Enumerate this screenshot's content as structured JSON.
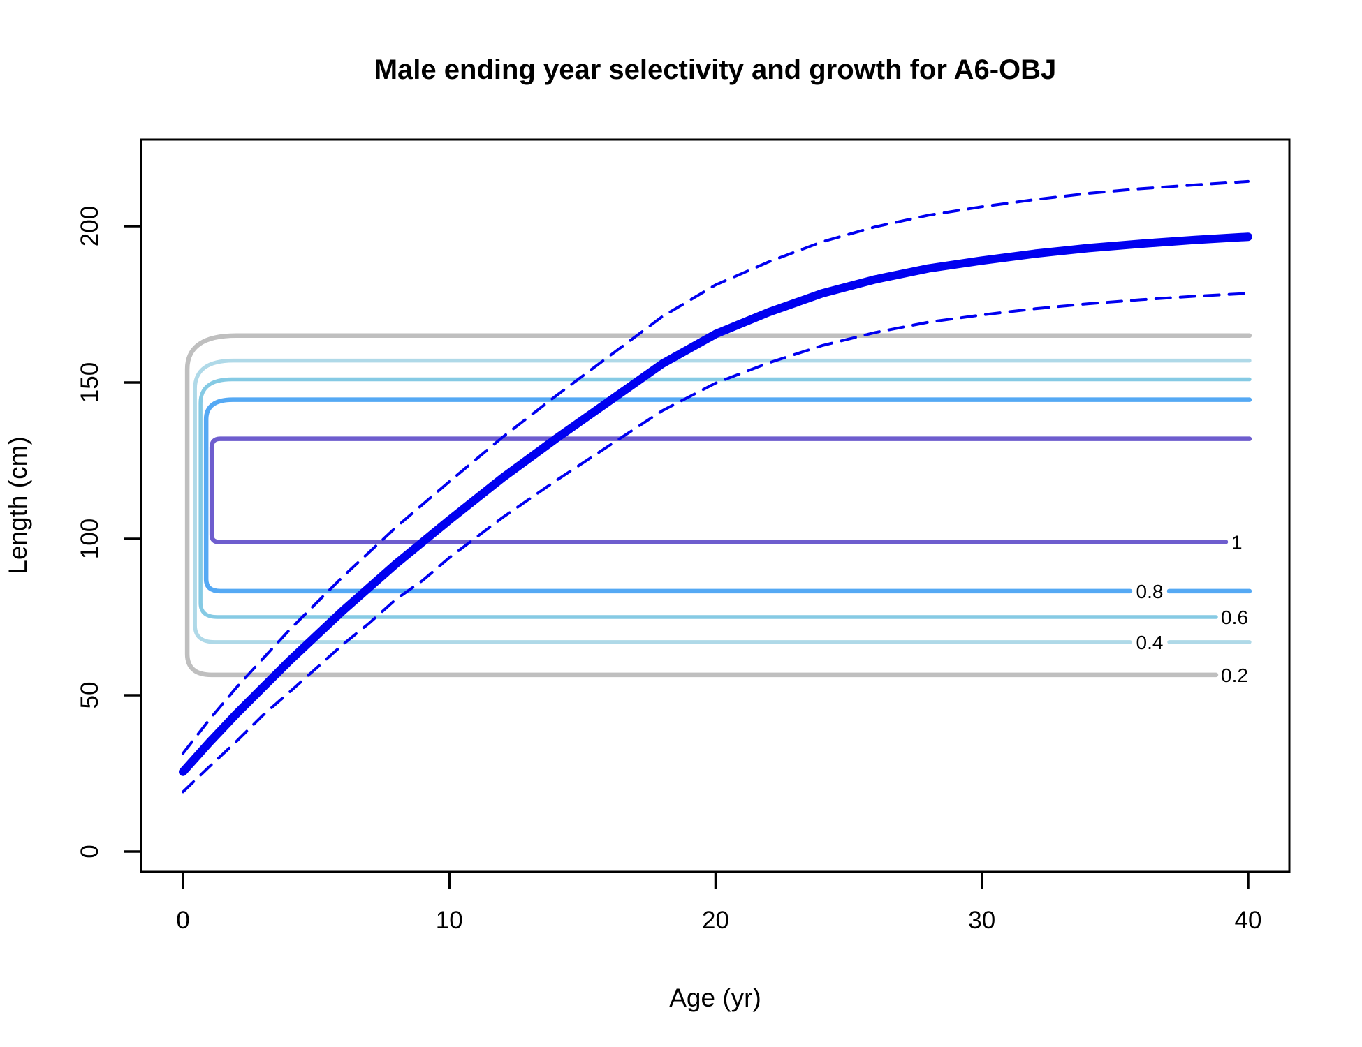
{
  "title": "Male ending year selectivity and growth for A6-OBJ",
  "x_axis": {
    "label": "Age (yr)",
    "ticks": [
      "0",
      "10",
      "20",
      "30",
      "40"
    ]
  },
  "y_axis": {
    "label": "Length (cm)",
    "ticks": [
      "0",
      "50",
      "100",
      "150",
      "200"
    ]
  },
  "colors": {
    "growth_mean": "#0000F0",
    "growth_interval": "#0000F0",
    "sel_02": "#BFBFBF",
    "sel_04": "#AFD9E8",
    "sel_06": "#85CAE4",
    "sel_08": "#55A9F4",
    "sel_10": "#6E5DCE",
    "axis": "#000000",
    "background": "#FFFFFF"
  },
  "chart_data": {
    "type": "line",
    "title": "Male ending year selectivity and growth for A6-OBJ",
    "xlabel": "Age (yr)",
    "ylabel": "Length (cm)",
    "xlim": [
      -1.6,
      42.4
    ],
    "ylim": [
      -7,
      235
    ],
    "x_ticks": [
      0,
      10,
      20,
      30,
      40
    ],
    "y_ticks": [
      0,
      50,
      100,
      150,
      200
    ],
    "grid": false,
    "legend_position": "none",
    "series": [
      {
        "name": "mean length at age",
        "style": "solid",
        "color": "#0000F0",
        "width": 12,
        "x": [
          0,
          1,
          2,
          3,
          4,
          5,
          6,
          7,
          8,
          9,
          10,
          12,
          14,
          16,
          18,
          20,
          22,
          24,
          26,
          28,
          30,
          32,
          34,
          36,
          38,
          40
        ],
        "y": [
          25.5,
          35.0,
          44.0,
          52.5,
          61.0,
          69.0,
          77.0,
          84.5,
          92.0,
          99.0,
          106.0,
          119.5,
          132.0,
          144.0,
          156.0,
          165.5,
          172.5,
          178.5,
          183.0,
          186.5,
          189.0,
          191.2,
          193.0,
          194.4,
          195.6,
          196.6
        ]
      },
      {
        "name": "upper interval of length at age",
        "style": "dashed",
        "color": "#0000F0",
        "width": 4,
        "x": [
          0,
          1,
          2,
          3,
          4,
          5,
          6,
          7,
          8,
          9,
          10,
          12,
          14,
          16,
          18,
          20,
          22,
          24,
          26,
          28,
          30,
          32,
          34,
          36,
          38,
          40
        ],
        "y": [
          31.4,
          42.3,
          52.4,
          61.7,
          70.9,
          79.4,
          87.9,
          95.8,
          103.7,
          111.0,
          118.3,
          132.5,
          145.7,
          158.4,
          171.1,
          181.2,
          188.6,
          195.0,
          199.8,
          203.5,
          206.2,
          208.5,
          210.5,
          212.0,
          213.2,
          214.3
        ]
      },
      {
        "name": "lower interval of length at age",
        "style": "dashed",
        "color": "#0000F0",
        "width": 4,
        "x": [
          0,
          1,
          2,
          3,
          4,
          5,
          6,
          7,
          8,
          9,
          10,
          12,
          14,
          16,
          18,
          20,
          22,
          24,
          26,
          28,
          30,
          32,
          34,
          36,
          38,
          40
        ],
        "y": [
          19.1,
          27.2,
          35.2,
          43.6,
          51.0,
          58.6,
          66.2,
          73.1,
          80.7,
          86.7,
          94.0,
          106.8,
          118.6,
          129.8,
          141.0,
          149.8,
          156.3,
          161.8,
          166.0,
          169.3,
          171.6,
          173.6,
          175.2,
          176.5,
          177.6,
          178.5
        ]
      }
    ],
    "contours": {
      "description": "Selectivity contour bands: each level spans a length range, starting near age 0-1 with a rounded left cap and extending to age 40; labels drawn on the lower line near the right end.",
      "age_end": 40.05,
      "levels": [
        {
          "level": 0.2,
          "label": "0.2",
          "color": "#BFBFBF",
          "length_min": 56.5,
          "length_max": 165.0,
          "age_start": 0.16,
          "label_anchor": "line-end"
        },
        {
          "level": 0.4,
          "label": "0.4",
          "color": "#AFD9E8",
          "length_min": 67.0,
          "length_max": 157.0,
          "age_start": 0.45,
          "label_anchor": "inline-gap"
        },
        {
          "level": 0.6,
          "label": "0.6",
          "color": "#85CAE4",
          "length_min": 75.0,
          "length_max": 151.0,
          "age_start": 0.66,
          "label_anchor": "line-end"
        },
        {
          "level": 0.8,
          "label": "0.8",
          "color": "#55A9F4",
          "length_min": 83.3,
          "length_max": 144.5,
          "age_start": 0.87,
          "label_anchor": "inline-gap"
        },
        {
          "level": 1.0,
          "label": "1",
          "color": "#6E5DCE",
          "length_min": 99.0,
          "length_max": 132.0,
          "age_start": 1.08,
          "label_anchor": "line-end"
        }
      ]
    }
  }
}
